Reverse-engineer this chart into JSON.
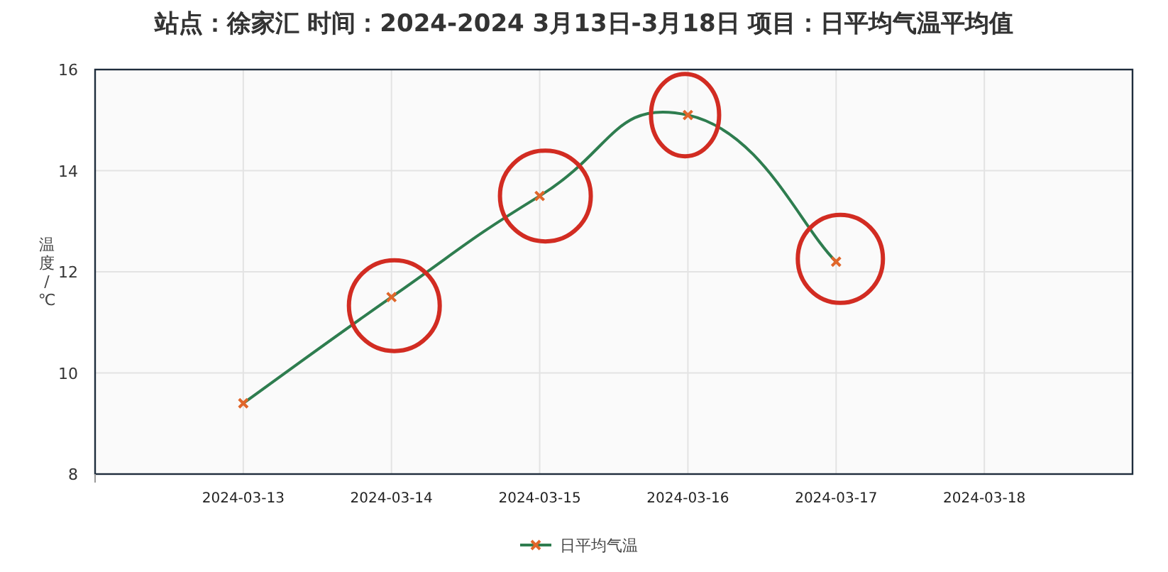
{
  "chart_data": {
    "type": "line",
    "title": "站点：徐家汇 时间：2024-2024  3月13日-3月18日 项目：日平均气温平均值",
    "ylabel": "温度/℃",
    "categories": [
      "2024-03-13",
      "2024-03-14",
      "2024-03-15",
      "2024-03-16",
      "2024-03-17",
      "2024-03-18"
    ],
    "series": [
      {
        "name": "日平均气温",
        "color": "#2e7d4f",
        "values": [
          9.4,
          11.5,
          13.5,
          15.1,
          12.2,
          null
        ]
      }
    ],
    "ylim": [
      8,
      16
    ],
    "yticks": [
      8,
      10,
      12,
      14,
      16
    ],
    "grid": true,
    "legend": "bottom",
    "marker": "cross"
  }
}
